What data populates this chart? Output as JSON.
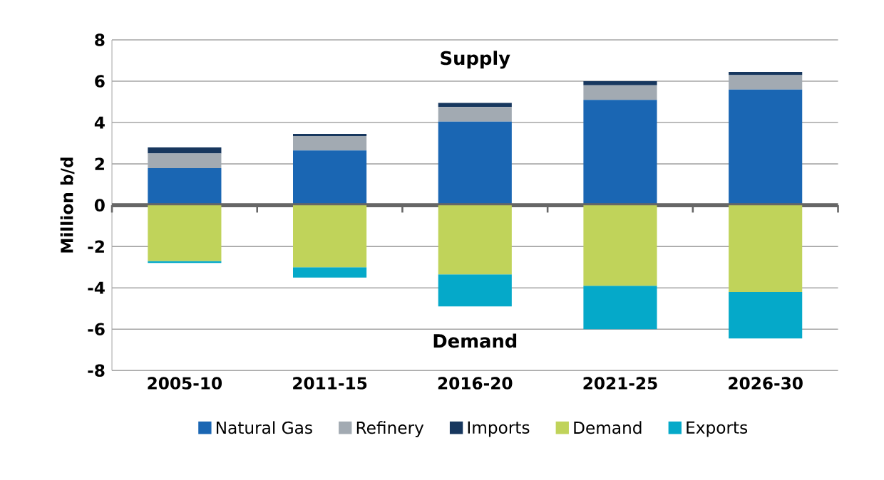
{
  "chart_data": {
    "type": "bar",
    "stacked": true,
    "ylabel": "Million b/d",
    "categories": [
      "2005-10",
      "2011-15",
      "2016-20",
      "2021-25",
      "2026-30"
    ],
    "series": [
      {
        "name": "Natural Gas",
        "color": "#1a66b3",
        "values": [
          1.8,
          2.65,
          4.05,
          5.1,
          5.6
        ]
      },
      {
        "name": "Refinery",
        "color": "#a2aab2",
        "values": [
          0.7,
          0.7,
          0.7,
          0.7,
          0.7
        ]
      },
      {
        "name": "Imports",
        "color": "#17375e",
        "values": [
          0.3,
          0.1,
          0.2,
          0.2,
          0.15
        ]
      },
      {
        "name": "Demand",
        "color": "#c0d35a",
        "values": [
          -2.7,
          -3.0,
          -3.35,
          -3.9,
          -4.2
        ]
      },
      {
        "name": "Exports",
        "color": "#05a9c9",
        "values": [
          -0.1,
          -0.5,
          -1.55,
          -2.1,
          -2.25
        ]
      }
    ],
    "ylim": [
      -8,
      8
    ],
    "yticks": [
      -8,
      -6,
      -4,
      -2,
      0,
      2,
      4,
      6,
      8
    ],
    "grid": "y",
    "legend": "bottom",
    "annotations": [
      "Supply",
      "Demand"
    ]
  }
}
